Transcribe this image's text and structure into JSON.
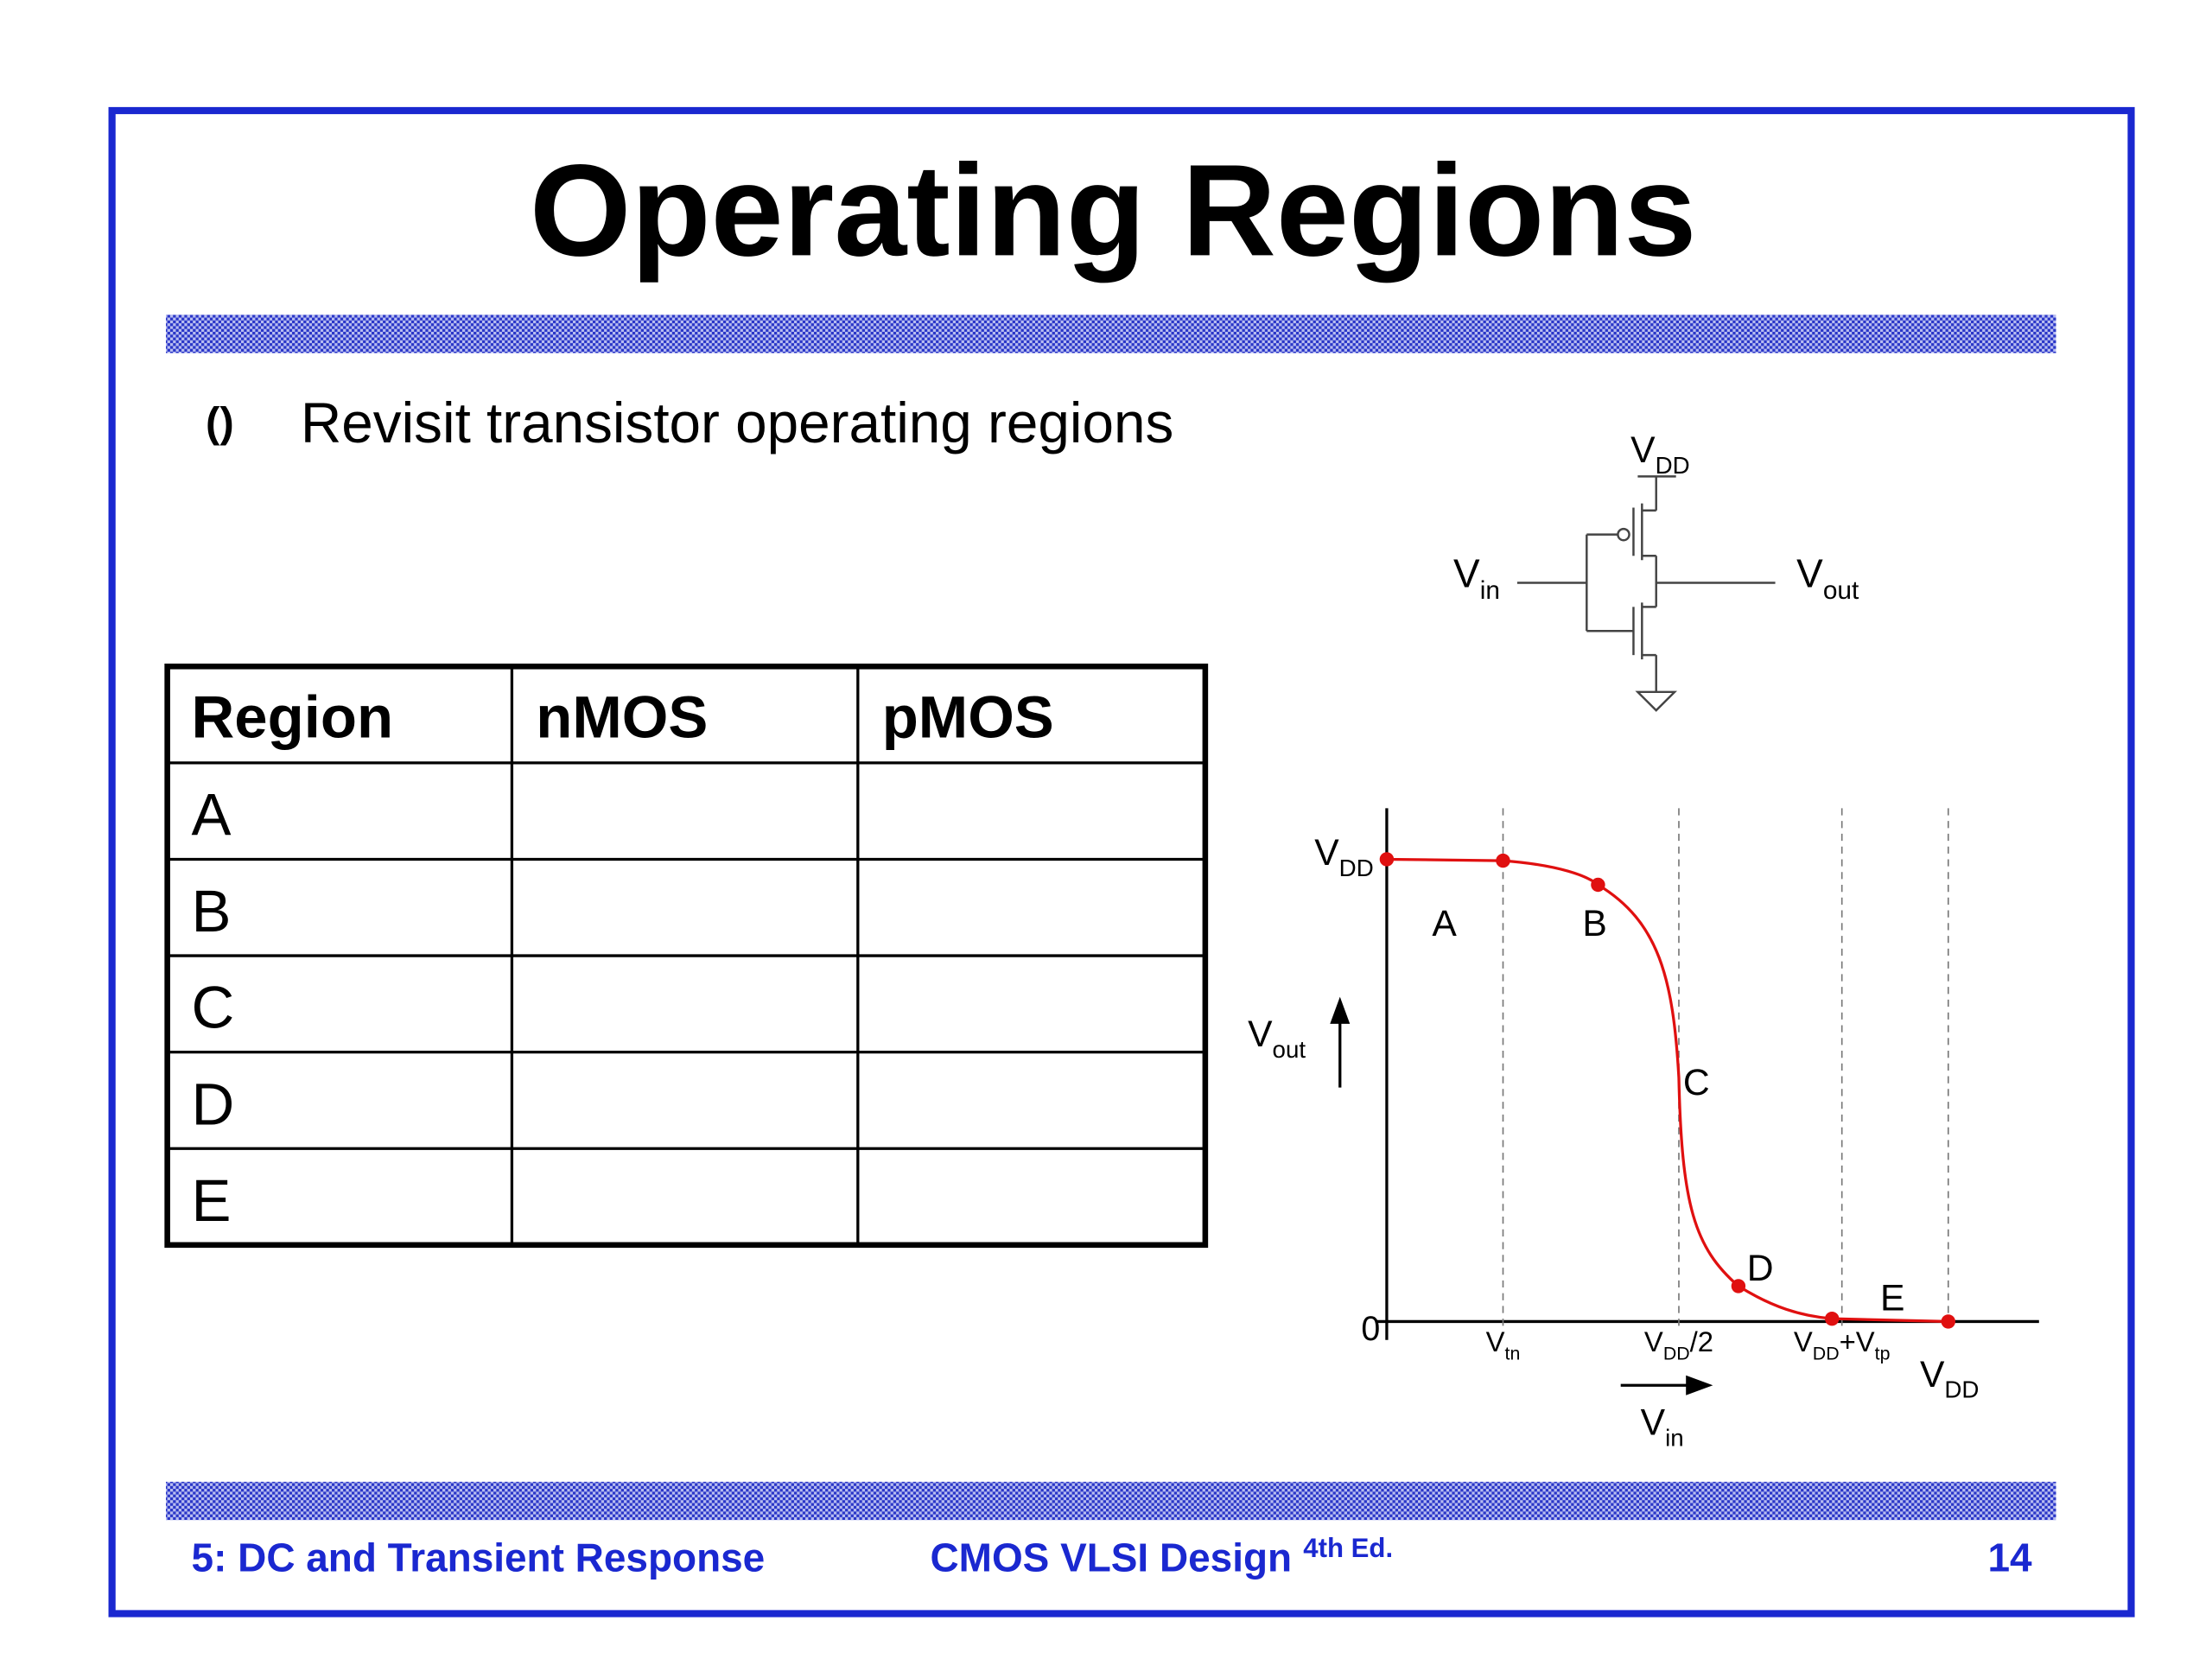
{
  "title": "Operating Regions",
  "bullet": "Revisit transistor operating regions",
  "table": {
    "header": [
      "Region",
      "nMOS",
      "pMOS"
    ],
    "rows": [
      "A",
      "B",
      "C",
      "D",
      "E"
    ]
  },
  "circuit": {
    "vdd": [
      "V",
      "DD"
    ],
    "vin": [
      "V",
      "in"
    ],
    "vout": [
      "V",
      "out"
    ]
  },
  "plot": {
    "y_top": [
      "V",
      "DD"
    ],
    "y_zero": "0",
    "y_axis": [
      "V",
      "out"
    ],
    "x_ticks": [
      [
        "V",
        "tn"
      ],
      [
        "V",
        "DD",
        "/2"
      ],
      [
        "V",
        "DD",
        "+V",
        "tp"
      ]
    ],
    "x_end": [
      "V",
      "DD"
    ],
    "x_axis": [
      "V",
      "in"
    ],
    "regions": [
      "A",
      "B",
      "C",
      "D",
      "E"
    ]
  },
  "footer": {
    "left": "5: DC and Transient Response",
    "center": "CMOS VLSI Design",
    "edition": "4th Ed.",
    "page": "14"
  }
}
